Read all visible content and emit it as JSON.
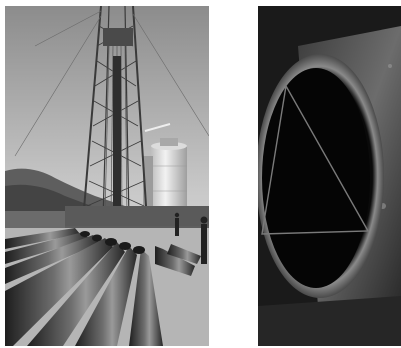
{
  "figure": {
    "panels": [
      {
        "id": "left",
        "subject": "drilling-rig-with-pipes",
        "tone": "grayscale"
      },
      {
        "id": "right",
        "subject": "pipe-end-closeup",
        "tone": "grayscale"
      }
    ],
    "colors": {
      "background": "#ffffff",
      "sky_top": "#9a9a9a",
      "sky_bottom": "#e4e4e4",
      "pipe_dark": "#2a2a2a",
      "pipe_light": "#8a8a8a",
      "ground": "#b8b8b8"
    }
  }
}
